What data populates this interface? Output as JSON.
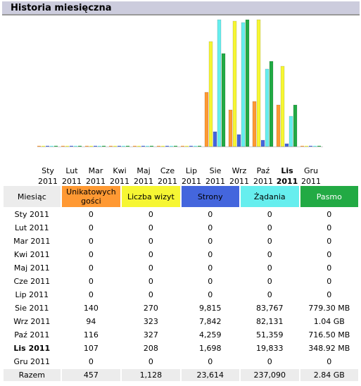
{
  "title": "Historia miesięczna",
  "colors": {
    "visitors": "#f93",
    "visits": "#f6f633",
    "pages": "#46d",
    "hits": "#6ee",
    "bandwidth": "#2a4"
  },
  "chart_data": {
    "type": "bar",
    "categories": [
      [
        "Sty",
        "2011"
      ],
      [
        "Lut",
        "2011"
      ],
      [
        "Mar",
        "2011"
      ],
      [
        "Kwi",
        "2011"
      ],
      [
        "Maj",
        "2011"
      ],
      [
        "Cze",
        "2011"
      ],
      [
        "Lip",
        "2011"
      ],
      [
        "Sie",
        "2011"
      ],
      [
        "Wrz",
        "2011"
      ],
      [
        "Paź",
        "2011"
      ],
      [
        "Lis",
        "2011"
      ],
      [
        "Gru",
        "2011"
      ]
    ],
    "current_index": 10,
    "series": [
      {
        "key": "visitors",
        "values": [
          0,
          0,
          0,
          0,
          0,
          0,
          0,
          140,
          94,
          116,
          107,
          0
        ]
      },
      {
        "key": "visits",
        "values": [
          0,
          0,
          0,
          0,
          0,
          0,
          0,
          270,
          323,
          327,
          208,
          0
        ]
      },
      {
        "key": "pages",
        "values": [
          0,
          0,
          0,
          0,
          0,
          0,
          0,
          9815,
          7842,
          4259,
          1698,
          0
        ]
      },
      {
        "key": "hits",
        "values": [
          0,
          0,
          0,
          0,
          0,
          0,
          0,
          83767,
          82131,
          51359,
          19833,
          0
        ]
      },
      {
        "key": "bandwidth",
        "values": [
          0,
          0,
          0,
          0,
          0,
          0,
          0,
          779.3,
          1064.96,
          716.5,
          348.92,
          0
        ]
      }
    ]
  },
  "table": {
    "headers": [
      "Miesiąc",
      "Unikatowych gości",
      "Liczba wizyt",
      "Strony",
      "Żądania",
      "Pasmo"
    ],
    "rows": [
      [
        "Sty 2011",
        "0",
        "0",
        "0",
        "0",
        "0"
      ],
      [
        "Lut 2011",
        "0",
        "0",
        "0",
        "0",
        "0"
      ],
      [
        "Mar 2011",
        "0",
        "0",
        "0",
        "0",
        "0"
      ],
      [
        "Kwi 2011",
        "0",
        "0",
        "0",
        "0",
        "0"
      ],
      [
        "Maj 2011",
        "0",
        "0",
        "0",
        "0",
        "0"
      ],
      [
        "Cze 2011",
        "0",
        "0",
        "0",
        "0",
        "0"
      ],
      [
        "Lip 2011",
        "0",
        "0",
        "0",
        "0",
        "0"
      ],
      [
        "Sie 2011",
        "140",
        "270",
        "9,815",
        "83,767",
        "779.30 MB"
      ],
      [
        "Wrz 2011",
        "94",
        "323",
        "7,842",
        "82,131",
        "1.04 GB"
      ],
      [
        "Paź 2011",
        "116",
        "327",
        "4,259",
        "51,359",
        "716.50 MB"
      ],
      [
        "Lis 2011",
        "107",
        "208",
        "1,698",
        "19,833",
        "348.92 MB"
      ],
      [
        "Gru 2011",
        "0",
        "0",
        "0",
        "0",
        "0"
      ]
    ],
    "total": [
      "Razem",
      "457",
      "1,128",
      "23,614",
      "237,090",
      "2.84 GB"
    ]
  }
}
